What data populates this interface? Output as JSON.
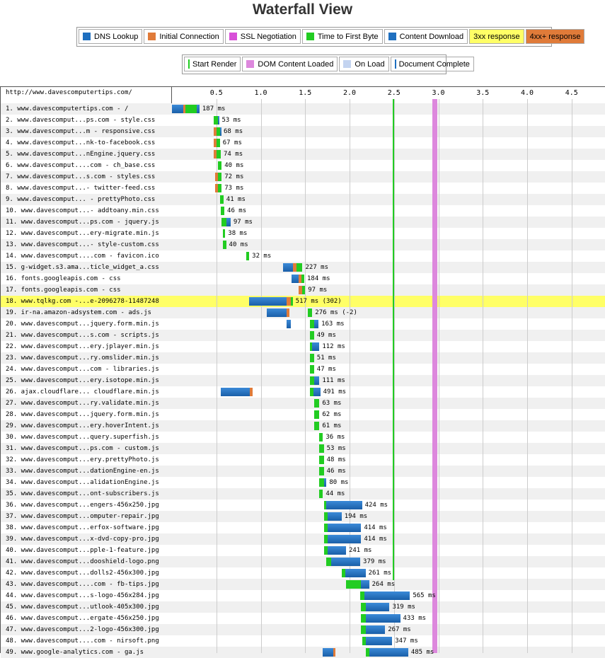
{
  "title": "Waterfall View",
  "legend": {
    "items": [
      {
        "label": "DNS Lookup",
        "color": "#1f6fbf",
        "kind": "swatch"
      },
      {
        "label": "Initial Connection",
        "color": "#e07b39",
        "kind": "swatch"
      },
      {
        "label": "SSL Negotiation",
        "color": "#d84fd8",
        "kind": "swatch"
      },
      {
        "label": "Time to First Byte",
        "color": "#22cc22",
        "kind": "swatch"
      },
      {
        "label": "Content Download",
        "color": "#1f6fbf",
        "kind": "swatch"
      },
      {
        "label": "3xx response",
        "color": "#ffff66",
        "kind": "bg"
      },
      {
        "label": "4xx+ response",
        "color": "#e07b39",
        "kind": "bg"
      }
    ],
    "markers": [
      {
        "label": "Start Render",
        "color": "#22cc22",
        "kind": "line"
      },
      {
        "label": "DOM Content Loaded",
        "color": "#dd88dd",
        "kind": "swatch"
      },
      {
        "label": "On Load",
        "color": "#c4d4f0",
        "kind": "swatch"
      },
      {
        "label": "Document Complete",
        "color": "#1f6fbf",
        "kind": "line"
      }
    ]
  },
  "chart_data": {
    "type": "bar",
    "page_url": "http://www.davescomputertips.com/",
    "x_ticks": [
      "0.5",
      "1.0",
      "1.5",
      "2.0",
      "2.5",
      "3.0",
      "3.5",
      "4.0",
      "4.5"
    ],
    "xlim": [
      0,
      4.9
    ],
    "start_render": 2.49,
    "dom_content_loaded": [
      2.93,
      2.99
    ],
    "requests": [
      {
        "label": "1. www.davescomputertips.com - /",
        "dns": [
          0.0,
          0.13
        ],
        "conn": [
          0.13,
          0.15
        ],
        "ttfb": [
          0.15,
          0.28
        ],
        "dl": [
          0.28,
          0.31
        ],
        "ms": "187 ms"
      },
      {
        "label": "2. www.davescomput...ps.com - style.css",
        "ttfb": [
          0.47,
          0.52
        ],
        "dl": [
          0.52,
          0.53
        ],
        "ms": "53 ms"
      },
      {
        "label": "3. www.davescomput...m - responsive.css",
        "conn": [
          0.47,
          0.5
        ],
        "ttfb": [
          0.5,
          0.54
        ],
        "dl": [
          0.54,
          0.55
        ],
        "ms": "68 ms"
      },
      {
        "label": "4. www.davescomput...nk-to-facebook.css",
        "conn": [
          0.47,
          0.5
        ],
        "ttfb": [
          0.5,
          0.54
        ],
        "ms": "67 ms"
      },
      {
        "label": "5. www.davescomput...nEngine.jquery.css",
        "conn": [
          0.47,
          0.5
        ],
        "ttfb": [
          0.5,
          0.55
        ],
        "ms": "74 ms"
      },
      {
        "label": "6. www.davescomput....com - ch_base.css",
        "ttfb": [
          0.52,
          0.56
        ],
        "ms": "40 ms"
      },
      {
        "label": "7. www.davescomput...s.com - styles.css",
        "conn": [
          0.49,
          0.52
        ],
        "ttfb": [
          0.52,
          0.56
        ],
        "ms": "72 ms"
      },
      {
        "label": "8. www.davescomput...- twitter-feed.css",
        "conn": [
          0.49,
          0.52
        ],
        "ttfb": [
          0.52,
          0.56
        ],
        "ms": "73 ms"
      },
      {
        "label": "9. www.davescomput... - prettyPhoto.css",
        "ttfb": [
          0.54,
          0.58
        ],
        "ms": "41 ms"
      },
      {
        "label": "10. www.davescomput...- addtoany.min.css",
        "ttfb": [
          0.55,
          0.59
        ],
        "ms": "46 ms"
      },
      {
        "label": "11. www.davescomput...ps.com - jquery.js",
        "ttfb": [
          0.56,
          0.61
        ],
        "dl": [
          0.61,
          0.66
        ],
        "ms": "97 ms"
      },
      {
        "label": "12. www.davescomput...ery-migrate.min.js",
        "ttfb": [
          0.57,
          0.6
        ],
        "ms": "38 ms"
      },
      {
        "label": "13. www.davescomput...- style-custom.css",
        "ttfb": [
          0.57,
          0.61
        ],
        "ms": "40 ms"
      },
      {
        "label": "14. www.davescomput....com - favicon.ico",
        "ttfb": [
          0.84,
          0.87
        ],
        "ms": "32 ms"
      },
      {
        "label": "15. g-widget.s3.ama...ticle_widget_a.css",
        "dns": [
          1.25,
          1.36
        ],
        "conn": [
          1.36,
          1.4
        ],
        "ttfb": [
          1.4,
          1.47
        ],
        "ms": "227 ms"
      },
      {
        "label": "16. fonts.googleapis.com - css",
        "dns": [
          1.35,
          1.43
        ],
        "conn": [
          1.43,
          1.46
        ],
        "ttfb": [
          1.46,
          1.49
        ],
        "ms": "184 ms"
      },
      {
        "label": "17. fonts.googleapis.com - css",
        "conn": [
          1.43,
          1.47
        ],
        "ttfb": [
          1.47,
          1.5
        ],
        "ms": "97 ms"
      },
      {
        "label": "18. www.tqlkg.com -...e-2096278-11487248",
        "dns": [
          0.87,
          1.29
        ],
        "conn": [
          1.29,
          1.34
        ],
        "ttfb": [
          1.34,
          1.36
        ],
        "ms": "517 ms (302)",
        "highlight": "#ffff66"
      },
      {
        "label": "19. ir-na.amazon-adsystem.com - ads.js",
        "dns": [
          1.07,
          1.29
        ],
        "conn": [
          1.29,
          1.32
        ],
        "ttfb": [
          1.53,
          1.58
        ],
        "ms": "276 ms (-2)"
      },
      {
        "label": "20. www.davescomput...jquery.form.min.js",
        "dns": [
          1.29,
          1.34
        ],
        "ttfb": [
          1.55,
          1.6
        ],
        "dl": [
          1.6,
          1.65
        ],
        "ms": "163 ms"
      },
      {
        "label": "21. www.davescomput...s.com - scripts.js",
        "ttfb": [
          1.55,
          1.6
        ],
        "ms": "49 ms"
      },
      {
        "label": "22. www.davescomput...ery.jplayer.min.js",
        "ttfb": [
          1.55,
          1.58
        ],
        "dl": [
          1.58,
          1.66
        ],
        "ms": "112 ms"
      },
      {
        "label": "23. www.davescomput...ry.omslider.min.js",
        "ttfb": [
          1.55,
          1.6
        ],
        "ms": "51 ms"
      },
      {
        "label": "24. www.davescomput...com - libraries.js",
        "ttfb": [
          1.55,
          1.6
        ],
        "ms": "47 ms"
      },
      {
        "label": "25. www.davescomput...ery.isotope.min.js",
        "ttfb": [
          1.55,
          1.6
        ],
        "dl": [
          1.6,
          1.66
        ],
        "ms": "111 ms"
      },
      {
        "label": "26. ajax.cloudflare... cloudflare.min.js",
        "dns": [
          0.55,
          0.88
        ],
        "conn": [
          0.88,
          0.91
        ],
        "ttfb": [
          1.55,
          1.59
        ],
        "dl": [
          1.59,
          1.67
        ],
        "ms": "491 ms"
      },
      {
        "label": "27. www.davescomput...ry.validate.min.js",
        "ttfb": [
          1.6,
          1.66
        ],
        "ms": "63 ms"
      },
      {
        "label": "28. www.davescomput...jquery.form.min.js",
        "ttfb": [
          1.6,
          1.66
        ],
        "ms": "62 ms"
      },
      {
        "label": "29. www.davescomput...ery.hoverIntent.js",
        "ttfb": [
          1.6,
          1.66
        ],
        "ms": "61 ms"
      },
      {
        "label": "30. www.davescomput...query.superfish.js",
        "ttfb": [
          1.66,
          1.7
        ],
        "ms": "36 ms"
      },
      {
        "label": "31. www.davescomput...ps.com - custom.js",
        "ttfb": [
          1.66,
          1.71
        ],
        "ms": "53 ms"
      },
      {
        "label": "32. www.davescomput...ery.prettyPhoto.js",
        "ttfb": [
          1.66,
          1.71
        ],
        "ms": "48 ms"
      },
      {
        "label": "33. www.davescomput...dationEngine-en.js",
        "ttfb": [
          1.66,
          1.71
        ],
        "ms": "46 ms"
      },
      {
        "label": "34. www.davescomput...alidationEngine.js",
        "ttfb": [
          1.66,
          1.71
        ],
        "dl": [
          1.71,
          1.74
        ],
        "ms": "80 ms"
      },
      {
        "label": "35. www.davescomput...ont-subscribers.js",
        "ttfb": [
          1.66,
          1.7
        ],
        "ms": "44 ms"
      },
      {
        "label": "36. www.davescomput...engers-456x250.jpg",
        "ttfb": [
          1.71,
          1.74
        ],
        "dl": [
          1.74,
          2.14
        ],
        "ms": "424 ms"
      },
      {
        "label": "37. www.davescomput...omputer-repair.jpg",
        "ttfb": [
          1.71,
          1.75
        ],
        "dl": [
          1.75,
          1.91
        ],
        "ms": "194 ms"
      },
      {
        "label": "38. www.davescomput...erfox-software.jpg",
        "ttfb": [
          1.71,
          1.75
        ],
        "dl": [
          1.75,
          2.13
        ],
        "ms": "414 ms"
      },
      {
        "label": "39. www.davescomput...x-dvd-copy-pro.jpg",
        "ttfb": [
          1.71,
          1.75
        ],
        "dl": [
          1.75,
          2.13
        ],
        "ms": "414 ms"
      },
      {
        "label": "40. www.davescomput...pple-1-feature.jpg",
        "ttfb": [
          1.71,
          1.75
        ],
        "dl": [
          1.75,
          1.96
        ],
        "ms": "241 ms"
      },
      {
        "label": "41. www.davescomput...dooshield-logo.png",
        "ttfb": [
          1.74,
          1.79
        ],
        "dl": [
          1.79,
          2.12
        ],
        "ms": "379 ms"
      },
      {
        "label": "42. www.davescomput...dolls2-456x300.jpg",
        "ttfb": [
          1.91,
          1.95
        ],
        "dl": [
          1.95,
          2.18
        ],
        "ms": "261 ms"
      },
      {
        "label": "43. www.davescomput....com - fb-tips.jpg",
        "ttfb": [
          1.96,
          2.13
        ],
        "dl": [
          2.13,
          2.22
        ],
        "ms": "264 ms"
      },
      {
        "label": "44. www.davescomput...s-logo-456x284.jpg",
        "ttfb": [
          2.12,
          2.17
        ],
        "dl": [
          2.17,
          2.68
        ],
        "ms": "565 ms"
      },
      {
        "label": "45. www.davescomput...utlook-405x300.jpg",
        "ttfb": [
          2.13,
          2.18
        ],
        "dl": [
          2.18,
          2.45
        ],
        "ms": "319 ms"
      },
      {
        "label": "46. www.davescomput...ergate-456x250.jpg",
        "ttfb": [
          2.13,
          2.18
        ],
        "dl": [
          2.18,
          2.57
        ],
        "ms": "433 ms"
      },
      {
        "label": "47. www.davescomput...2-logo-456x300.jpg",
        "ttfb": [
          2.13,
          2.18
        ],
        "dl": [
          2.18,
          2.4
        ],
        "ms": "267 ms"
      },
      {
        "label": "48. www.davescomput....com - nirsoft.png",
        "ttfb": [
          2.14,
          2.18
        ],
        "dl": [
          2.18,
          2.48
        ],
        "ms": "347 ms"
      },
      {
        "label": "49. www.google-analytics.com - ga.js",
        "dns": [
          1.7,
          1.82
        ],
        "conn": [
          1.82,
          1.84
        ],
        "ttfb": [
          2.18,
          2.22
        ],
        "dl": [
          2.22,
          2.66
        ],
        "ms": "485 ms"
      }
    ]
  }
}
